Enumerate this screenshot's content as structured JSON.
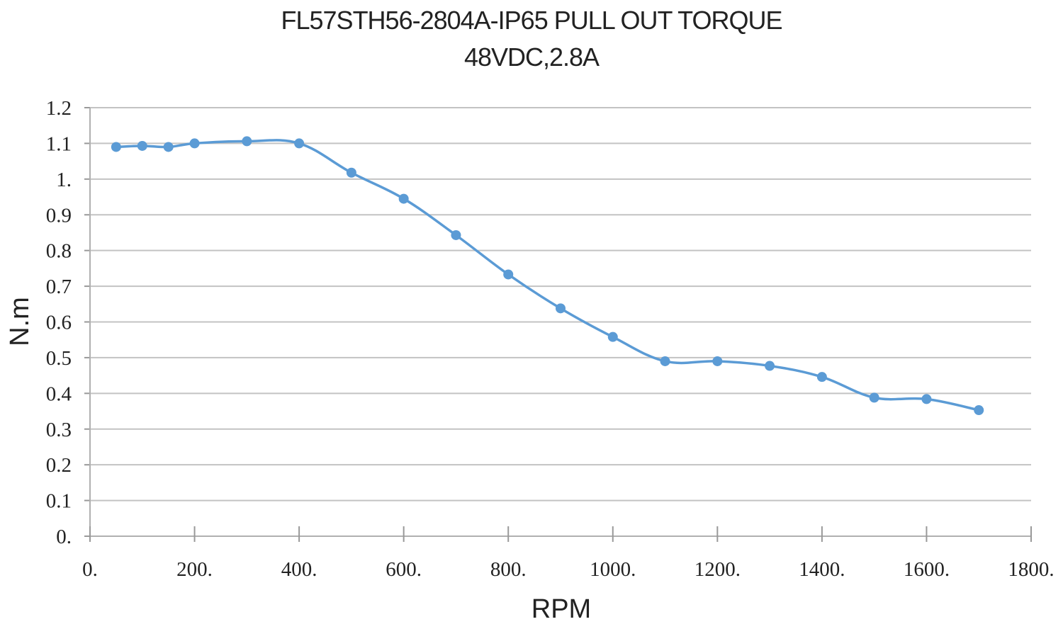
{
  "chart_data": {
    "type": "line",
    "title": "FL57STH56-2804A-IP65  PULL OUT TORQUE",
    "subtitle": "48VDC,2.8A",
    "xlabel": "RPM",
    "ylabel": "N.m",
    "xlim": [
      0,
      1800
    ],
    "ylim": [
      0,
      1.2
    ],
    "x_ticks": [
      "0.",
      "200.",
      "400.",
      "600.",
      "800.",
      "1000.",
      "1200.",
      "1400.",
      "1600.",
      "1800."
    ],
    "y_ticks": [
      "0.",
      "0.1",
      "0.2",
      "0.3",
      "0.4",
      "0.5",
      "0.6",
      "0.7",
      "0.8",
      "0.9",
      "1.",
      "1.1",
      "1.2"
    ],
    "grid": true,
    "legend": "none",
    "series": [
      {
        "color": "#5b9bd5",
        "x": [
          50,
          100,
          150,
          200,
          300,
          400,
          500,
          600,
          700,
          800,
          900,
          1000,
          1100,
          1200,
          1300,
          1400,
          1500,
          1600,
          1700
        ],
        "y": [
          1.09,
          1.093,
          1.09,
          1.1,
          1.106,
          1.1,
          1.018,
          0.945,
          0.843,
          0.733,
          0.638,
          0.558,
          0.49,
          0.49,
          0.477,
          0.446,
          0.388,
          0.384,
          0.353
        ]
      }
    ]
  }
}
